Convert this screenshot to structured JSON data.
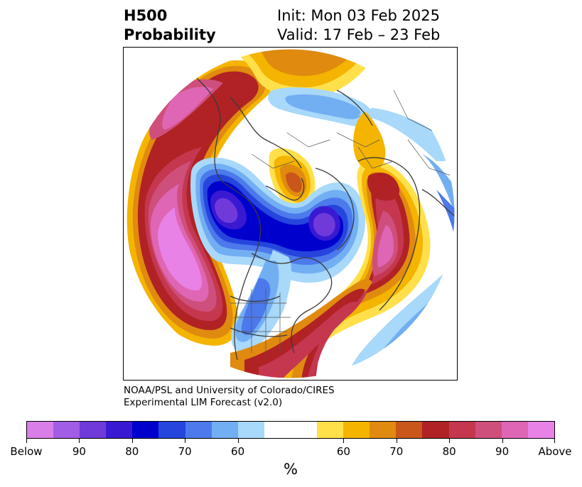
{
  "header": {
    "title_line1": "H500",
    "title_line2": "Probability",
    "init_text": "Init: Mon 03 Feb 2025",
    "valid_text": "Valid: 17 Feb – 23 Feb"
  },
  "credit": {
    "line1": "NOAA/PSL and University of Colorado/CIRES",
    "line2": "Experimental LIM Forecast (v2.0)"
  },
  "colorbar": {
    "colors": {
      "below": [
        "#d97ee9",
        "#a25de6",
        "#6f3ad9",
        "#3a19d2",
        "#0000cd",
        "#2545dd",
        "#4c79eb",
        "#72aef2",
        "#a8d8fa"
      ],
      "neutral": "#ffffff",
      "above": [
        "#ffe04a",
        "#f4b400",
        "#e08a0f",
        "#c9561b",
        "#b02224",
        "#c4374f",
        "#cf4f7c",
        "#df66b4",
        "#e982e6"
      ]
    },
    "tick_labels": [
      "Below",
      "90",
      "80",
      "70",
      "60",
      "60",
      "70",
      "80",
      "90",
      "Above"
    ],
    "unit_label": "%"
  },
  "map": {
    "projection": "north-polar-stereographic",
    "variable": "500-hPa height tercile probability"
  }
}
